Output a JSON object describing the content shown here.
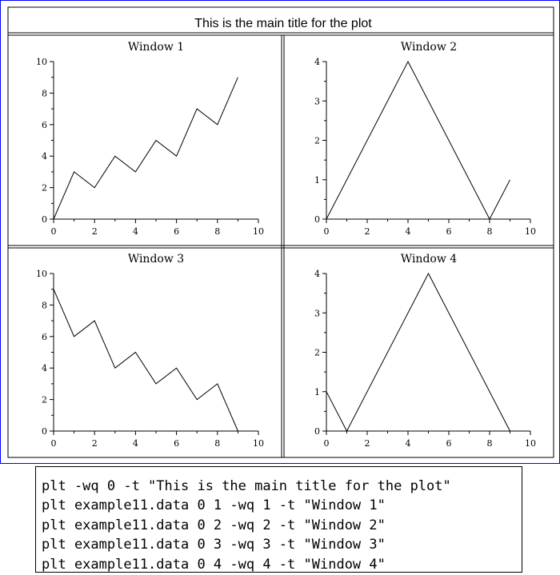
{
  "main_title": "This is the main title for the plot",
  "chart_data": [
    {
      "type": "line",
      "title": "Window 1",
      "x": [
        0,
        1,
        2,
        3,
        4,
        5,
        6,
        7,
        8,
        9
      ],
      "y": [
        0,
        3,
        2,
        4,
        3,
        5,
        4,
        7,
        6,
        9
      ],
      "xlim": [
        0,
        10
      ],
      "ylim": [
        0,
        10
      ],
      "xticks": [
        0,
        2,
        4,
        6,
        8,
        10
      ],
      "yticks": [
        0,
        2,
        4,
        6,
        8,
        10
      ],
      "grid": false
    },
    {
      "type": "line",
      "title": "Window 2",
      "x": [
        0,
        4,
        8,
        9
      ],
      "y": [
        0,
        4,
        0,
        1
      ],
      "xlim": [
        0,
        10
      ],
      "ylim": [
        0,
        4
      ],
      "xticks": [
        0,
        2,
        4,
        6,
        8,
        10
      ],
      "yticks": [
        0,
        1,
        2,
        3,
        4
      ],
      "grid": false
    },
    {
      "type": "line",
      "title": "Window 3",
      "x": [
        0,
        1,
        2,
        3,
        4,
        5,
        6,
        7,
        8,
        9
      ],
      "y": [
        9,
        6,
        7,
        4,
        5,
        3,
        4,
        2,
        3,
        0
      ],
      "xlim": [
        0,
        10
      ],
      "ylim": [
        0,
        10
      ],
      "xticks": [
        0,
        2,
        4,
        6,
        8,
        10
      ],
      "yticks": [
        0,
        2,
        4,
        6,
        8,
        10
      ],
      "grid": false
    },
    {
      "type": "line",
      "title": "Window 4",
      "x": [
        0,
        1,
        5,
        9
      ],
      "y": [
        1,
        0,
        4,
        0
      ],
      "xlim": [
        0,
        10
      ],
      "ylim": [
        0,
        4
      ],
      "xticks": [
        0,
        2,
        4,
        6,
        8,
        10
      ],
      "yticks": [
        0,
        1,
        2,
        3,
        4
      ],
      "grid": false
    }
  ],
  "commands": [
    "plt -wq 0 -t \"This is the main title for the plot\"",
    "plt example11.data 0 1 -wq 1 -t \"Window 1\"",
    "plt example11.data 0 2 -wq 2 -t \"Window 2\"",
    "plt example11.data 0 3 -wq 3 -t \"Window 3\"",
    "plt example11.data 0 4 -wq 4 -t \"Window 4\""
  ]
}
